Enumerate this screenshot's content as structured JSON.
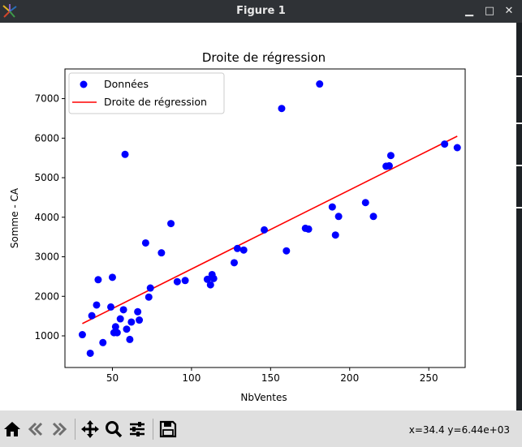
{
  "window": {
    "title": "Figure 1",
    "minimize_glyph": "▁",
    "maximize_glyph": "□",
    "close_glyph": "✕"
  },
  "toolbar": {
    "buttons": [
      {
        "name": "home-icon"
      },
      {
        "name": "back-arrow-icon"
      },
      {
        "name": "forward-arrow-icon"
      },
      {
        "name": "pan-icon"
      },
      {
        "name": "zoom-icon"
      },
      {
        "name": "configure-subplots-icon"
      },
      {
        "name": "save-icon"
      }
    ],
    "coords": "x=34.4 y=6.44e+03"
  },
  "colors": {
    "data": "#0000ff",
    "line": "#ff0000",
    "titlebar": "#2f3236",
    "toolbar": "#dfdfdf"
  },
  "chart_data": {
    "type": "scatter",
    "title": "Droite de régression",
    "xlabel": "NbVentes",
    "ylabel": "Somme - CA",
    "xlim": [
      20,
      273
    ],
    "ylim": [
      200,
      7750
    ],
    "xticks": [
      50,
      100,
      150,
      200,
      250
    ],
    "yticks": [
      1000,
      2000,
      3000,
      4000,
      5000,
      6000,
      7000
    ],
    "legend_position": "upper-left",
    "series": [
      {
        "name": "Données",
        "marker": "circle",
        "points": [
          [
            31,
            1030
          ],
          [
            36,
            560
          ],
          [
            37,
            1510
          ],
          [
            40,
            1780
          ],
          [
            41,
            2420
          ],
          [
            44,
            830
          ],
          [
            49,
            1730
          ],
          [
            50,
            2480
          ],
          [
            51,
            1080
          ],
          [
            52,
            1230
          ],
          [
            53,
            1080
          ],
          [
            55,
            1430
          ],
          [
            57,
            1660
          ],
          [
            58,
            5590
          ],
          [
            59,
            1170
          ],
          [
            61,
            910
          ],
          [
            62,
            1350
          ],
          [
            66,
            1610
          ],
          [
            67,
            1400
          ],
          [
            71,
            3350
          ],
          [
            73,
            1980
          ],
          [
            74,
            2210
          ],
          [
            81,
            3100
          ],
          [
            87,
            3840
          ],
          [
            91,
            2370
          ],
          [
            96,
            2400
          ],
          [
            110,
            2430
          ],
          [
            112,
            2290
          ],
          [
            113,
            2550
          ],
          [
            114,
            2450
          ],
          [
            127,
            2850
          ],
          [
            129,
            3210
          ],
          [
            133,
            3170
          ],
          [
            146,
            3680
          ],
          [
            157,
            6750
          ],
          [
            160,
            3150
          ],
          [
            172,
            3720
          ],
          [
            174,
            3700
          ],
          [
            181,
            7370
          ],
          [
            189,
            4260
          ],
          [
            191,
            3550
          ],
          [
            193,
            4020
          ],
          [
            210,
            4370
          ],
          [
            215,
            4020
          ],
          [
            223,
            5290
          ],
          [
            225,
            5300
          ],
          [
            226,
            5560
          ],
          [
            260,
            5850
          ],
          [
            268,
            5760
          ]
        ]
      },
      {
        "name": "Droite de régression",
        "type": "line",
        "points": [
          [
            31,
            1310
          ],
          [
            268,
            6050
          ]
        ]
      }
    ]
  }
}
